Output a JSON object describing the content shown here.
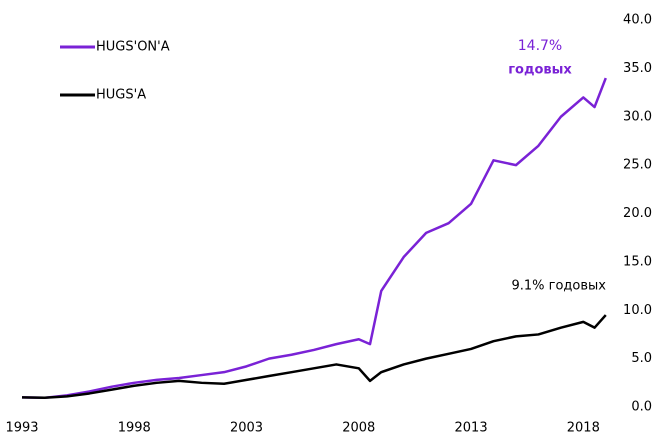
{
  "chart_data": {
    "type": "line",
    "x": [
      1993,
      1994,
      1995,
      1996,
      1997,
      1998,
      1999,
      2000,
      2001,
      2002,
      2003,
      2004,
      2005,
      2006,
      2007,
      2008,
      2008.5,
      2009,
      2010,
      2011,
      2012,
      2013,
      2014,
      2015,
      2016,
      2017,
      2018,
      2018.5,
      2019
    ],
    "series": [
      {
        "name": "HUGS'ON'A",
        "color": "#7a22d6",
        "values": [
          1,
          0.95,
          1.2,
          1.6,
          2.1,
          2.5,
          2.8,
          3.0,
          3.3,
          3.6,
          4.2,
          5.0,
          5.4,
          5.9,
          6.5,
          7.0,
          6.5,
          12,
          15.5,
          18,
          19,
          21,
          25.5,
          25,
          27,
          30,
          32,
          31,
          34
        ]
      },
      {
        "name": "HUGS'A",
        "color": "#000000",
        "values": [
          1,
          0.95,
          1.1,
          1.4,
          1.8,
          2.2,
          2.5,
          2.7,
          2.5,
          2.4,
          2.8,
          3.2,
          3.6,
          4.0,
          4.4,
          4.0,
          2.7,
          3.6,
          4.4,
          5.0,
          5.5,
          6.0,
          6.8,
          7.3,
          7.5,
          8.2,
          8.8,
          8.2,
          9.5
        ]
      }
    ],
    "xlim": [
      1993,
      2019.5
    ],
    "xticks": [
      1993,
      1998,
      2003,
      2008,
      2013,
      2018
    ],
    "ylim": [
      0,
      40
    ],
    "yticks": [
      {
        "value": 0,
        "label": "0.0"
      },
      {
        "value": 5,
        "label": "5.0"
      },
      {
        "value": 10,
        "label": "10.0"
      },
      {
        "value": 15,
        "label": "15.0"
      },
      {
        "value": 20,
        "label": "20.0"
      },
      {
        "value": 25,
        "label": "25.0"
      },
      {
        "value": 30,
        "label": "30.0"
      },
      {
        "value": 35,
        "label": "35.0"
      },
      {
        "value": 40,
        "label": "40.0"
      }
    ],
    "legend": "top-left",
    "annotations": [
      "14.7%",
      "годовых",
      "9.1% годовых"
    ]
  }
}
